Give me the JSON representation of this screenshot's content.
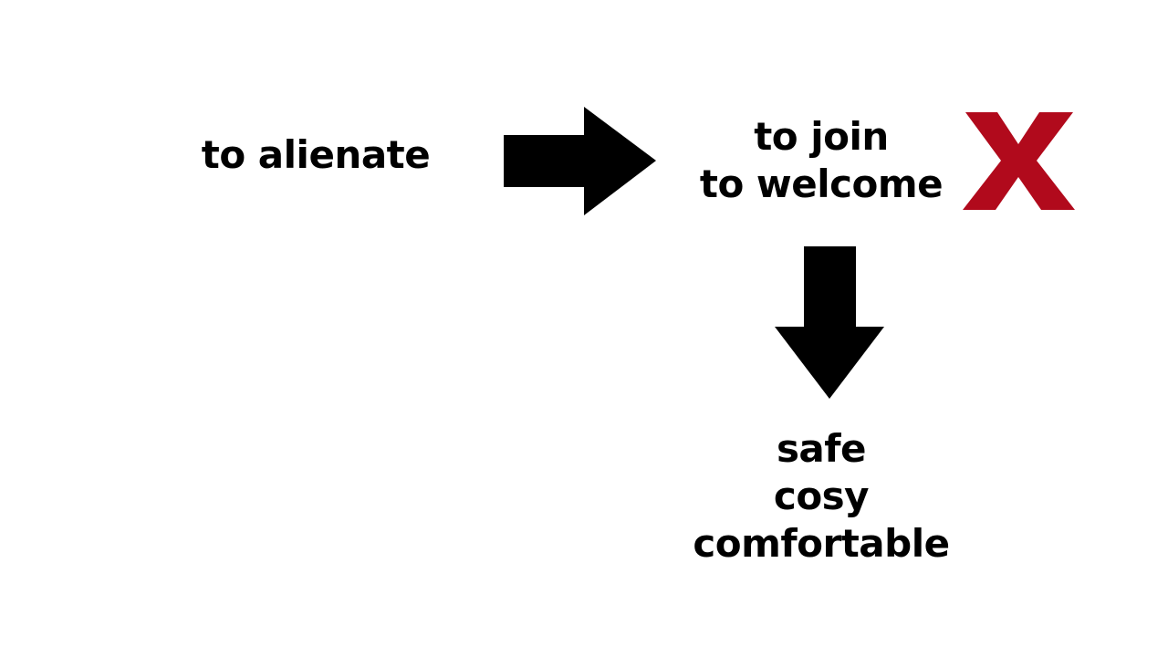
{
  "diagram": {
    "source_term": "to alienate",
    "opposite_terms": [
      "to join",
      "to welcome"
    ],
    "result_terms": [
      "safe",
      "cosy",
      "comfortable"
    ],
    "arrows": [
      {
        "from": "source_term",
        "to": "opposite_terms",
        "direction": "right"
      },
      {
        "from": "opposite_terms",
        "to": "result_terms",
        "direction": "down"
      }
    ],
    "cross_mark": {
      "meaning": "rejected",
      "color": "#b10a1c"
    }
  },
  "colors": {
    "text": "#000000",
    "arrow": "#000000",
    "background": "#ffffff",
    "cross": "#b10a1c"
  },
  "icons": {
    "right_arrow": "arrow-right-icon",
    "down_arrow": "arrow-down-icon",
    "cross": "cross-x-icon"
  }
}
